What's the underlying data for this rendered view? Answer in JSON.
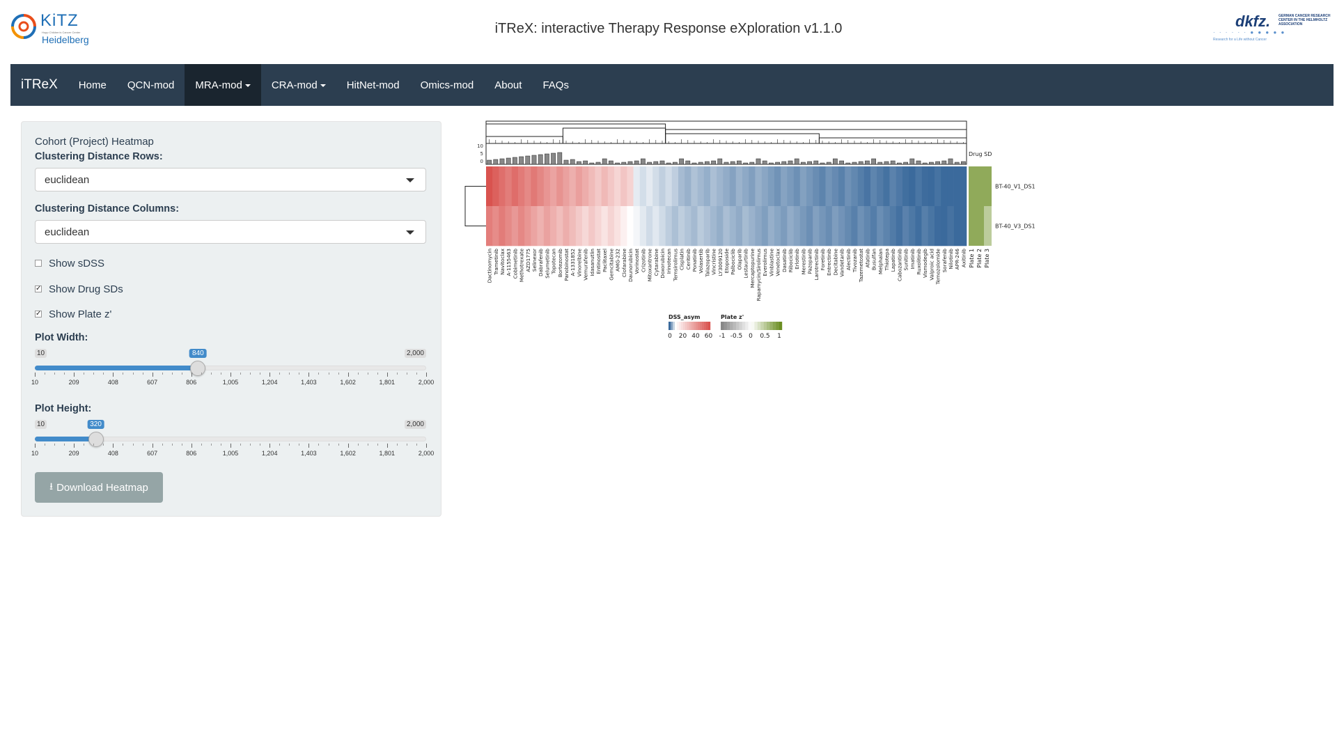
{
  "header": {
    "kitz_title": "KiTZ",
    "kitz_subtitle": "Hopp Children's Cancer Center",
    "kitz_city": "Heidelberg",
    "app_title": "iTReX: interactive Therapy Response eXploration v1.1.0",
    "dkfz_main": "dkfz.",
    "dkfz_side": "GERMAN CANCER RESEARCH CENTER IN THE HELMHOLTZ ASSOCIATION",
    "dkfz_tagline": "Research for a Life without Cancer"
  },
  "navbar": {
    "brand": "iTReX",
    "items": [
      {
        "label": "Home",
        "active": false,
        "dropdown": false
      },
      {
        "label": "QCN-mod",
        "active": false,
        "dropdown": false
      },
      {
        "label": "MRA-mod",
        "active": true,
        "dropdown": true
      },
      {
        "label": "CRA-mod",
        "active": false,
        "dropdown": true
      },
      {
        "label": "HitNet-mod",
        "active": false,
        "dropdown": false
      },
      {
        "label": "Omics-mod",
        "active": false,
        "dropdown": false
      },
      {
        "label": "About",
        "active": false,
        "dropdown": false
      },
      {
        "label": "FAQs",
        "active": false,
        "dropdown": false
      }
    ]
  },
  "sidebar": {
    "heading": "Cohort (Project) Heatmap",
    "rows_label": "Clustering Distance Rows:",
    "rows_value": "euclidean",
    "cols_label": "Clustering Distance Columns:",
    "cols_value": "euclidean",
    "checkboxes": [
      {
        "label": "Show sDSS",
        "checked": false
      },
      {
        "label": "Show Drug SDs",
        "checked": true
      },
      {
        "label": "Show Plate z'",
        "checked": true
      }
    ],
    "width_label": "Plot Width:",
    "width_slider": {
      "min": 10,
      "max": 2000,
      "min_label": "10",
      "max_label": "2,000",
      "value": 840,
      "value_label": "840"
    },
    "height_label": "Plot Height:",
    "height_slider": {
      "min": 10,
      "max": 2000,
      "min_label": "10",
      "max_label": "2,000",
      "value": 320,
      "value_label": "320"
    },
    "tick_labels": [
      "10",
      "209",
      "408",
      "607",
      "806",
      "1,005",
      "1,204",
      "1,403",
      "1,602",
      "1,801",
      "2,000"
    ],
    "download_label": "Download Heatmap"
  },
  "chart_data": {
    "type": "heatmap",
    "colors": {
      "low": "#3b6a9c",
      "mid": "#ffffff",
      "high": "#d9534f",
      "plate_low": "#888888",
      "plate_high": "#6b8e23"
    },
    "rows": [
      "BT-40_V1_DS1",
      "BT-40_V3_DS1"
    ],
    "columns": [
      "Dactinomycin",
      "Trametinib",
      "Navitoclax",
      "A-1155463",
      "Cobimetinib",
      "Methotrexate",
      "AZD1775",
      "Selinexor",
      "Dabrafenib",
      "Selumetinib",
      "Topotecan",
      "Bortezomib",
      "Panobinostat",
      "A-1331852",
      "Vinorelbine",
      "Vemurafenib",
      "Idasanutlin",
      "Entinostat",
      "Paclitaxel",
      "Gemcitabine",
      "AMG-232",
      "Clofarabine",
      "Daunorubicin",
      "Vorinostat",
      "Crizotinib",
      "Mitoxantrone",
      "Cytarabine",
      "Doxorubicin",
      "Irinotecan",
      "Temsirolimus",
      "Cisplatin",
      "Ceritinib",
      "Ponatinib",
      "Volasertib",
      "Talazoparib",
      "Vincristine",
      "LY3009120",
      "Etoposide",
      "Palbociclib",
      "Olaparib",
      "Lestaurtinib",
      "Mercaptopurine",
      "Rapamycin/Sirolimus",
      "Everolimus",
      "Vinblastine",
      "Venetoclax",
      "Dasatinib",
      "Ribociclib",
      "Erlotinib",
      "Merestinib",
      "Pazopanib",
      "Larotrectinib",
      "Foretinib",
      "Entrectinib",
      "Decitabine",
      "Vandetanib",
      "Alectinib",
      "Tivozanib",
      "Tazemetostat",
      "Afatinib",
      "Busulfan",
      "Melphalan",
      "Thiotepa",
      "Lapatinib",
      "Cabozantinib",
      "Sunitinib",
      "Imatinib",
      "Ruxolitinib",
      "Vismodegib",
      "Valproic acid",
      "Temozolomide",
      "Sorafenib",
      "Nilotinib",
      "APR-246",
      "Axitinib"
    ],
    "legend": {
      "dss_title": "DSS_asym",
      "dss_ticks": [
        "0",
        "20",
        "40",
        "60"
      ],
      "plate_title": "Plate z'",
      "plate_ticks": [
        "-1",
        "-0.5",
        "0",
        "0.5",
        "1"
      ]
    },
    "drug_sd_label": "Drug SD",
    "drug_sd_axis_ticks": [
      "10",
      "5",
      "0"
    ],
    "plate_columns": [
      "Plate 1",
      "Plate 2",
      "Plate 3"
    ]
  }
}
